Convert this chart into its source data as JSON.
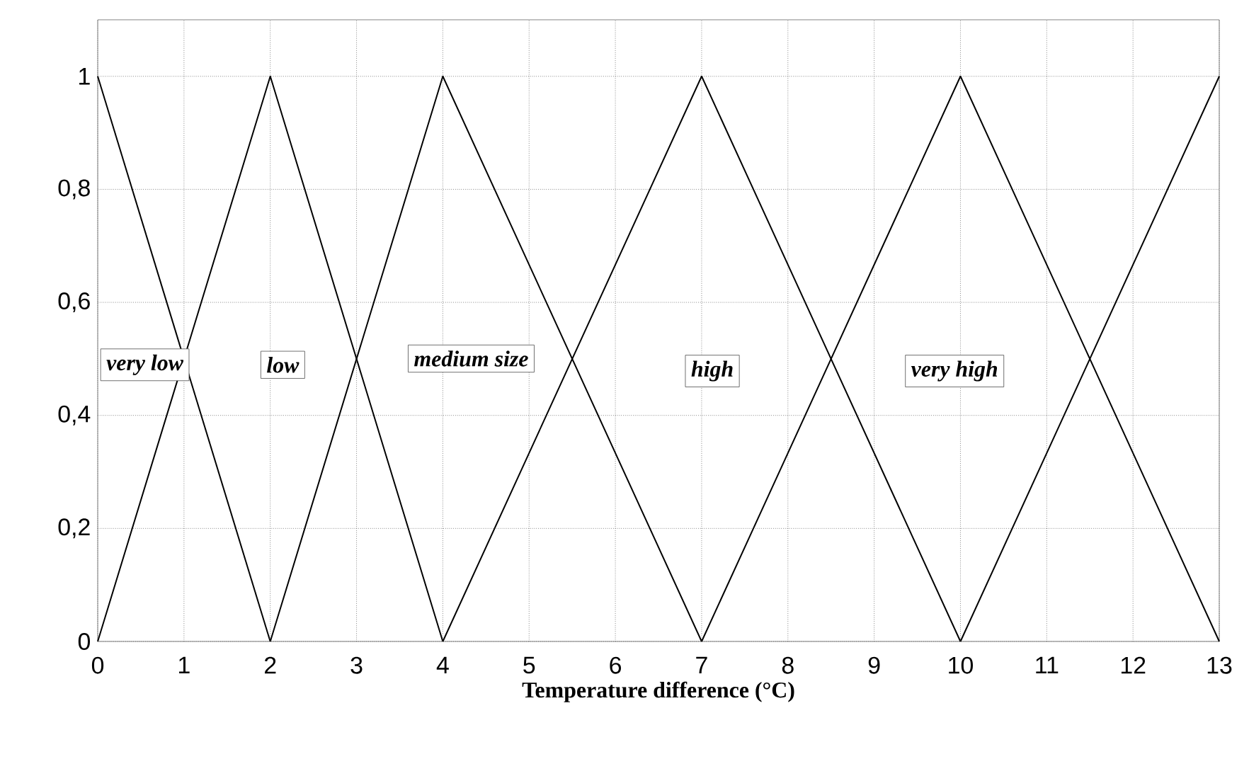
{
  "chart_data": {
    "type": "line",
    "xlabel": "Temperature difference (°C)",
    "series": [
      {
        "color": "#000000",
        "x": [
          0,
          2
        ],
        "values": [
          1,
          0
        ]
      },
      {
        "color": "#000000",
        "x": [
          0,
          2,
          4
        ],
        "values": [
          0,
          1,
          0
        ]
      },
      {
        "color": "#000000",
        "x": [
          2,
          4,
          7
        ],
        "values": [
          0,
          1,
          0
        ]
      },
      {
        "color": "#000000",
        "x": [
          4,
          7,
          10
        ],
        "values": [
          0,
          1,
          0
        ]
      },
      {
        "color": "#000000",
        "x": [
          7,
          10,
          13
        ],
        "values": [
          0,
          1,
          0
        ]
      },
      {
        "color": "#000000",
        "x": [
          10,
          13
        ],
        "values": [
          0,
          1
        ]
      }
    ],
    "xlim": [
      0,
      13
    ],
    "xticks": [
      0,
      1,
      2,
      3,
      4,
      5,
      6,
      7,
      8,
      9,
      10,
      11,
      12,
      13
    ],
    "ylim": [
      0,
      1.1
    ],
    "yticks": [
      0,
      {
        "value": 0.2,
        "label": "0,2"
      },
      {
        "value": 0.4,
        "label": "0,4"
      },
      {
        "value": 0.6,
        "label": "0,6"
      },
      {
        "value": 0.8,
        "label": "0,8"
      },
      1
    ],
    "annotations": [
      "very low",
      "low",
      "medium size",
      "high",
      "very high"
    ],
    "grid": true,
    "marker": "none",
    "line_style": "solid"
  }
}
